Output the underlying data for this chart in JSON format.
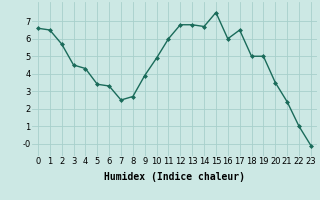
{
  "x": [
    0,
    1,
    2,
    3,
    4,
    5,
    6,
    7,
    8,
    9,
    10,
    11,
    12,
    13,
    14,
    15,
    16,
    17,
    18,
    19,
    20,
    21,
    22,
    23
  ],
  "y": [
    6.6,
    6.5,
    5.7,
    4.5,
    4.3,
    3.4,
    3.3,
    2.5,
    2.7,
    3.9,
    4.9,
    6.0,
    6.8,
    6.8,
    6.7,
    7.5,
    6.0,
    6.5,
    5.0,
    5.0,
    3.5,
    2.4,
    1.0,
    -0.1
  ],
  "line_color": "#1a6b5a",
  "marker": "D",
  "marker_size": 2,
  "bg_color": "#cce8e4",
  "grid_color": "#a8d0cb",
  "xlabel": "Humidex (Indice chaleur)",
  "xlim": [
    -0.5,
    23.5
  ],
  "ylim": [
    -0.7,
    8.1
  ],
  "yticks": [
    0,
    1,
    2,
    3,
    4,
    5,
    6,
    7
  ],
  "ytick_labels": [
    "-0",
    "1",
    "2",
    "3",
    "4",
    "5",
    "6",
    "7"
  ],
  "xticks": [
    0,
    1,
    2,
    3,
    4,
    5,
    6,
    7,
    8,
    9,
    10,
    11,
    12,
    13,
    14,
    15,
    16,
    17,
    18,
    19,
    20,
    21,
    22,
    23
  ],
  "xlabel_fontsize": 7,
  "tick_fontsize": 6,
  "linewidth": 1.0
}
